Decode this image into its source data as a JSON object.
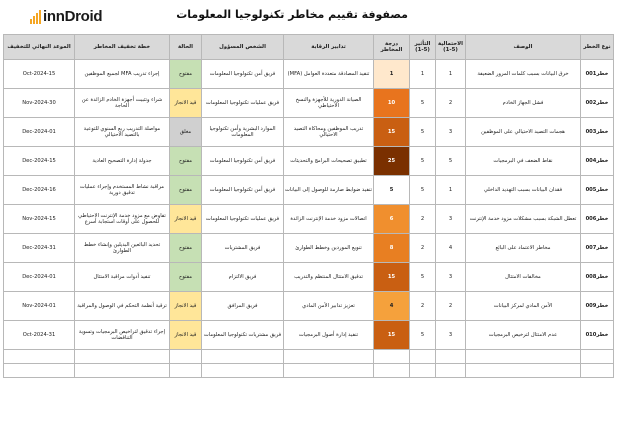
{
  "header": {
    "logo_text": "innDroid",
    "title": "مصفوفة تقييم مخاطر تكنولوجيا المعلومات"
  },
  "columns": [
    "نوع الخطر",
    "الوصف",
    "الاحتمالية (5-1)",
    "التأثير (5-1)",
    "درجة المخاطر",
    "تدابير الرقابة",
    "الشخص المسؤول",
    "الحالة",
    "خطة تخفيف المخاطر",
    "الموعد النهائي للتخفيف"
  ],
  "colors": {
    "score_1": "#ffe8cc",
    "score_4": "#f5a13c",
    "score_6": "#f08f2e",
    "score_8": "#e87f22",
    "score_10": "#e8741e",
    "score_15": "#c95f12",
    "score_25": "#7a3000",
    "status_mf": "#c6e0b4",
    "status_qi": "#ffe699",
    "status_ml": "#d0d0d0"
  },
  "rows": [
    {
      "id": "خطر001",
      "desc": "خرق البيانات بسبب كلمات المرور الضعيفة",
      "likelihood": "1",
      "impact": "1",
      "score": "1",
      "control": "تنفيذ المصادقة متعددة العوامل (MFA)",
      "owner": "فريق أمن تكنولوجيا المعلومات",
      "status": "مفتوح",
      "plan": "إجراء تدريب MFA لجميع الموظفين",
      "deadline": "15-Oct-2024"
    },
    {
      "id": "خطر002",
      "desc": "فشل الجهاز الخادم",
      "likelihood": "2",
      "impact": "5",
      "score": "10",
      "control": "الصيانة الدورية للأجهزة والنسخ الاحتياطي",
      "owner": "فريق عمليات تكنولوجيا المعلومات",
      "status": "قيد الانجاز",
      "plan": "شراء وتثبيت أجهزة الخادم الزائدة عن الحاجة",
      "deadline": "30-Nov-2024"
    },
    {
      "id": "خطر003",
      "desc": "هجمات التصيد الاحتيالي على الموظفين",
      "likelihood": "3",
      "impact": "5",
      "score": "15",
      "control": "تدريب الموظفين ومحاكاة التصيد الاحتيالي",
      "owner": "الموارد البشرية وأمن تكنولوجيا المعلومات",
      "status": "مغلق",
      "plan": "مواصلة التدريب ربع السنوي للتوعية بالتصيد الاحتيالي",
      "deadline": "01-Dec-2024"
    },
    {
      "id": "خطر004",
      "desc": "نقاط الضعف في البرمجيات",
      "likelihood": "5",
      "impact": "5",
      "score": "25",
      "control": "تطبيق تصحيحات البرامج والتحديثات",
      "owner": "فريق أمن تكنولوجيا المعلومات",
      "status": "مفتوح",
      "plan": "جدولة إدارة التصحيح العادية",
      "deadline": "15-Dec-2024"
    },
    {
      "id": "خطر005",
      "desc": "فقدان البيانات بسبب التهديد الداخلي",
      "likelihood": "1",
      "impact": "5",
      "score": "5",
      "control": "تنفيذ ضوابط صارمة للوصول إلى البيانات",
      "owner": "فريق أمن تكنولوجيا المعلومات",
      "status": "مفتوح",
      "plan": "مراقبة نشاط المستخدم وإجراء عمليات تدقيق دورية",
      "deadline": "16-Dec-2024"
    },
    {
      "id": "خطر006",
      "desc": "تعطل الشبكة بسبب مشكلات مزود خدمة الإنترنت",
      "likelihood": "3",
      "impact": "2",
      "score": "6",
      "control": "اتصالات مزود خدمة الإنترنت الزائدة",
      "owner": "فريق عمليات تكنولوجيا المعلومات",
      "status": "قيد الانجاز",
      "plan": "تفاوض مع مزود خدمة الإنترنت الاحتياطي للحصول على أوقات استجابة أسرع",
      "deadline": "15-Nov-2024"
    },
    {
      "id": "خطر007",
      "desc": "مخاطر الاعتماد على البائع",
      "likelihood": "4",
      "impact": "2",
      "score": "8",
      "control": "تنويع الموردين وخطط الطوارئ",
      "owner": "فريق المشتريات",
      "status": "مفتوح",
      "plan": "تحديد البائعين البديلين وإنشاء خطط الطوارئ",
      "deadline": "31-Dec-2024"
    },
    {
      "id": "خطر008",
      "desc": "مخالفات الامتثال",
      "likelihood": "3",
      "impact": "5",
      "score": "15",
      "control": "تدقيق الامتثال المنتظم والتدريب",
      "owner": "فريق الالتزام",
      "status": "مفتوح",
      "plan": "تنفيذ أدوات مراقبة الامتثال",
      "deadline": "01-Dec-2024"
    },
    {
      "id": "خطر009",
      "desc": "الأمن المادي لمركز البيانات",
      "likelihood": "2",
      "impact": "2",
      "score": "4",
      "control": "تعزيز تدابير الأمن المادي",
      "owner": "فريق المرافق",
      "status": "قيد الانجاز",
      "plan": "ترقية أنظمة التحكم في الوصول والمراقبة",
      "deadline": "01-Nov-2024"
    },
    {
      "id": "خطر010",
      "desc": "عدم الامتثال لترخيص البرمجيات",
      "likelihood": "3",
      "impact": "5",
      "score": "15",
      "control": "تنفيذ إدارة أصول البرمجيات",
      "owner": "فريق مشتريات تكنولوجيا المعلومات",
      "status": "قيد الانجاز",
      "plan": "إجراء تدقيق لتراخيص البرمجيات وتسوية التناقضات",
      "deadline": "31-Oct-2024"
    }
  ]
}
